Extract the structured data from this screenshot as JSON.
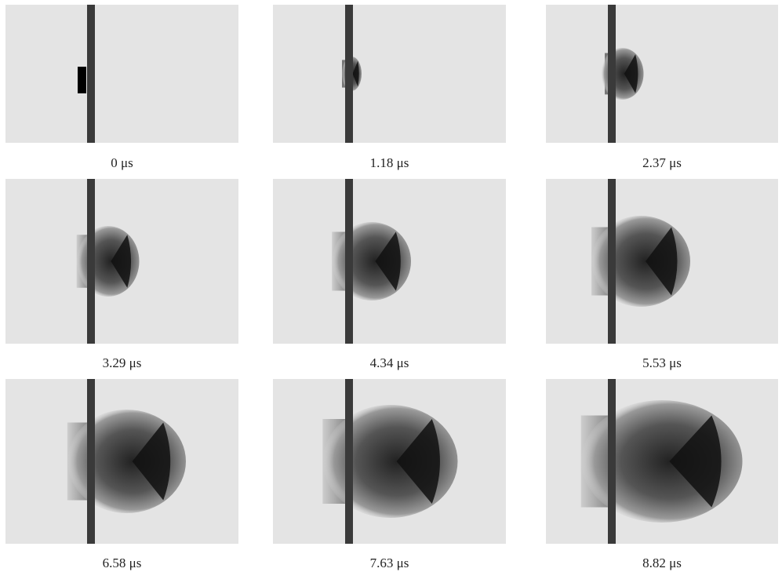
{
  "panels": [
    {
      "caption": "0 μs"
    },
    {
      "caption": "1.18 μs"
    },
    {
      "caption": "2.37 μs"
    },
    {
      "caption": "3.29 μs"
    },
    {
      "caption": "4.34 μs"
    },
    {
      "caption": "5.53 μs"
    },
    {
      "caption": "6.58 μs"
    },
    {
      "caption": "7.63 μs"
    },
    {
      "caption": "8.82 μs"
    }
  ]
}
